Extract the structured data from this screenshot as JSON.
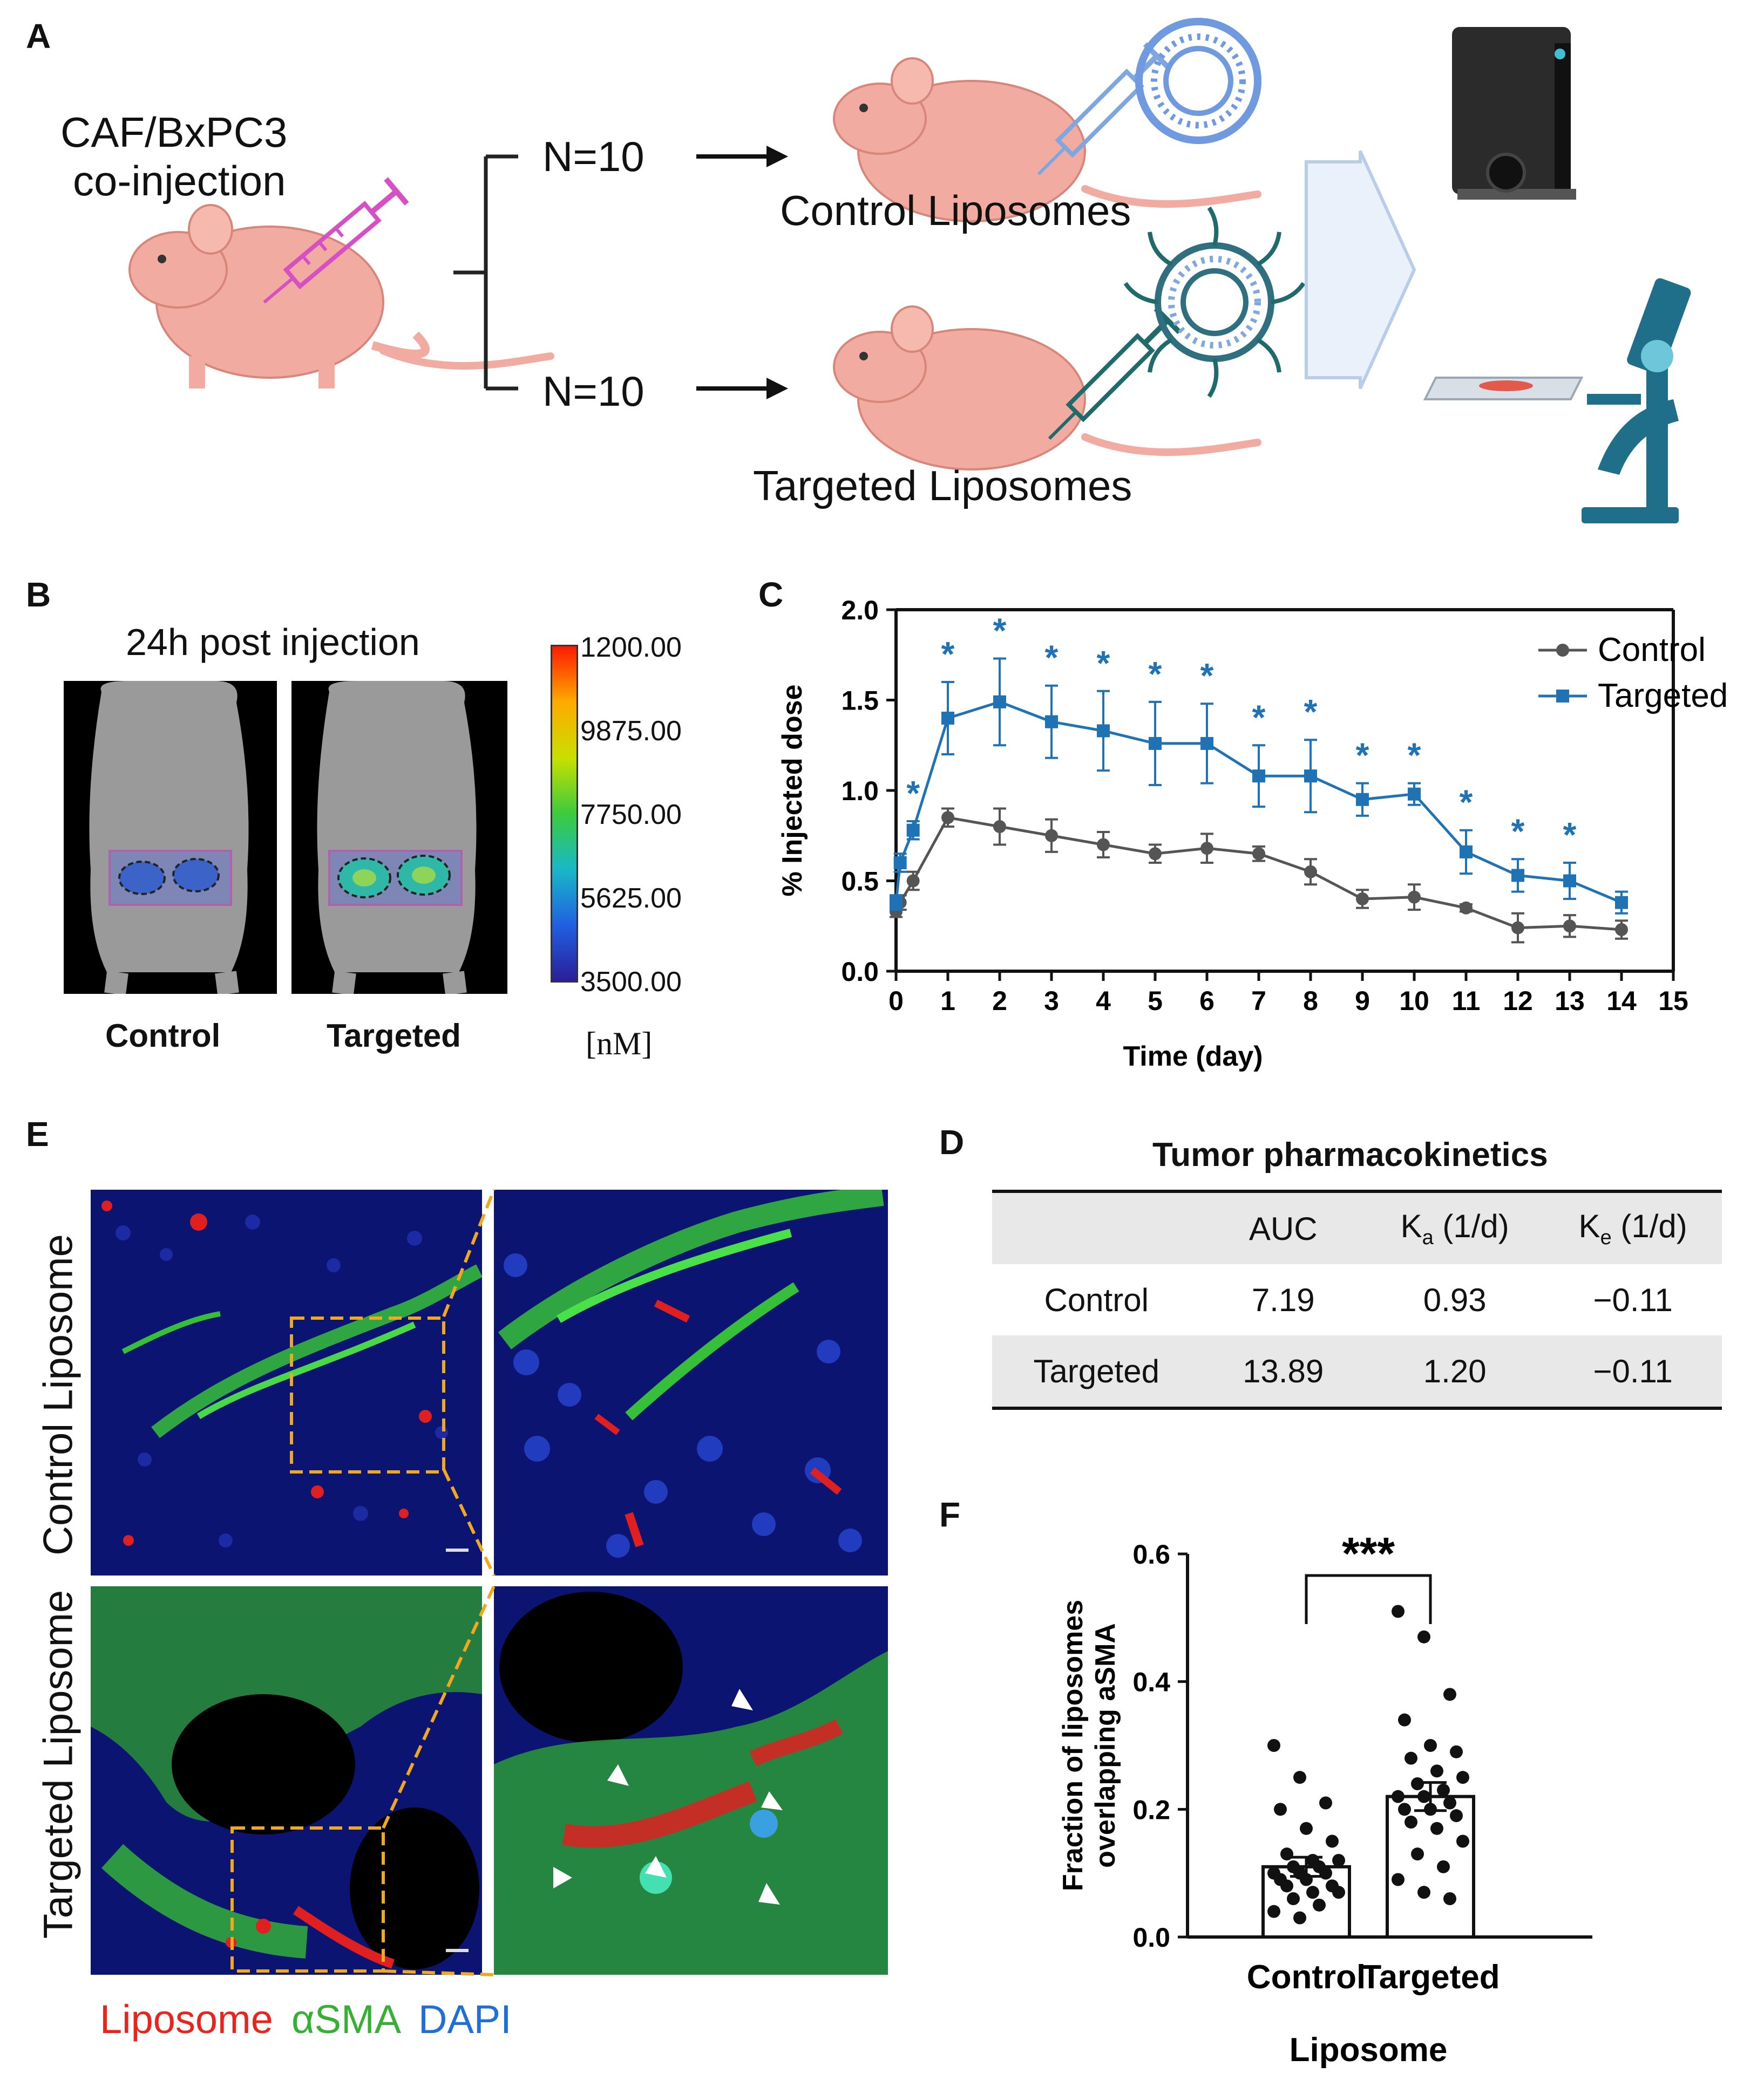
{
  "panels": {
    "A": {
      "letter": "A",
      "coinjection_line1": "CAF/BxPC3",
      "coinjection_line2": "co-injection",
      "group1_n": "N=10",
      "group2_n": "N=10",
      "group1_label": "Control Liposomes",
      "group2_label": "Targeted Liposomes"
    },
    "B": {
      "letter": "B",
      "title": "24h post injection",
      "label_control": "Control",
      "label_targeted": "Targeted",
      "colorbar_ticks": [
        "1200.00",
        "9875.00",
        "7750.00",
        "5625.00",
        "3500.00"
      ],
      "colorbar_unit": "[nM]",
      "colorbar_colors": [
        "#ff1a00",
        "#ffaa00",
        "#c8e000",
        "#3ccb3c",
        "#19b8c8",
        "#2060e0",
        "#2a1e9a"
      ]
    },
    "C": {
      "letter": "C"
    },
    "D": {
      "letter": "D",
      "title": "Tumor pharmacokinetics",
      "headers": [
        "",
        "AUC",
        "Ka (1/d)",
        "Ke (1/d)"
      ],
      "header_main": [
        "",
        "AUC",
        "K",
        "K"
      ],
      "header_sub": [
        "",
        "",
        "a",
        "e"
      ],
      "header_unit": [
        "",
        "",
        " (1/d)",
        " (1/d)"
      ],
      "rows": [
        [
          "Control",
          "7.19",
          "0.93",
          "−0.11"
        ],
        [
          "Targeted",
          "13.89",
          "1.20",
          "−0.11"
        ]
      ]
    },
    "E": {
      "letter": "E",
      "row1_label": "Control Liposome",
      "row2_label": "Targeted Liposome",
      "legend": [
        {
          "text": "Liposome",
          "color": "#e8251c"
        },
        {
          "text": "αSMA",
          "color": "#35b035"
        },
        {
          "text": "DAPI",
          "color": "#1f6fd6"
        }
      ]
    },
    "F": {
      "letter": "F"
    }
  },
  "chart_data": [
    {
      "type": "line",
      "panel": "C",
      "xlabel": "Time (day)",
      "ylabel": "% Injected dose",
      "xlim": [
        0,
        15
      ],
      "ylim": [
        0,
        2.0
      ],
      "xticks": [
        0,
        1,
        2,
        3,
        4,
        5,
        6,
        7,
        8,
        9,
        10,
        11,
        12,
        13,
        14,
        15
      ],
      "yticks": [
        0.0,
        0.5,
        1.0,
        1.5,
        2.0
      ],
      "ytick_labels": [
        "0.0",
        "0.5",
        "1.0",
        "1.5",
        "2.0"
      ],
      "legend_position": "top-right",
      "series": [
        {
          "name": "Control",
          "color": "#555555",
          "marker": "circle",
          "x": [
            0,
            0.08,
            0.33,
            1,
            2,
            3,
            4,
            5,
            6,
            7,
            8,
            9,
            10,
            11,
            12,
            13,
            14
          ],
          "y": [
            0.33,
            0.38,
            0.5,
            0.85,
            0.8,
            0.75,
            0.7,
            0.65,
            0.68,
            0.65,
            0.55,
            0.4,
            0.41,
            0.35,
            0.24,
            0.25,
            0.23
          ],
          "err": [
            0.03,
            0.04,
            0.05,
            0.05,
            0.1,
            0.09,
            0.07,
            0.05,
            0.08,
            0.04,
            0.07,
            0.05,
            0.07,
            0.02,
            0.08,
            0.06,
            0.05
          ]
        },
        {
          "name": "Targeted",
          "color": "#1f73b4",
          "marker": "square",
          "x": [
            0,
            0.08,
            0.33,
            1,
            2,
            3,
            4,
            5,
            6,
            7,
            8,
            9,
            10,
            11,
            12,
            13,
            14
          ],
          "y": [
            0.38,
            0.6,
            0.78,
            1.4,
            1.49,
            1.38,
            1.33,
            1.26,
            1.26,
            1.08,
            1.08,
            0.95,
            0.98,
            0.66,
            0.53,
            0.5,
            0.38
          ],
          "err": [
            0.04,
            0.05,
            0.05,
            0.2,
            0.24,
            0.2,
            0.22,
            0.23,
            0.22,
            0.17,
            0.2,
            0.09,
            0.06,
            0.12,
            0.09,
            0.1,
            0.06
          ]
        }
      ],
      "significance": {
        "symbol": "*",
        "color": "#1f73b4",
        "x": [
          0.33,
          1,
          2,
          3,
          4,
          5,
          6,
          7,
          8,
          9,
          10,
          11,
          12,
          13
        ]
      }
    },
    {
      "type": "bar",
      "panel": "F",
      "categories": [
        "Control",
        "Targeted"
      ],
      "values": [
        0.11,
        0.22
      ],
      "sem": [
        0.015,
        0.022
      ],
      "xlabel": "Liposome",
      "ylabel_line1": "Fraction of liposomes",
      "ylabel_line2": "overlapping aSMA",
      "ylim": [
        0,
        0.6
      ],
      "yticks": [
        0.0,
        0.2,
        0.4,
        0.6
      ],
      "ytick_labels": [
        "0.0",
        "0.2",
        "0.4",
        "0.6"
      ],
      "significance": "***",
      "points": [
        [
          0.3,
          0.25,
          0.21,
          0.2,
          0.17,
          0.15,
          0.13,
          0.12,
          0.12,
          0.11,
          0.11,
          0.1,
          0.1,
          0.1,
          0.09,
          0.09,
          0.08,
          0.08,
          0.07,
          0.07,
          0.06,
          0.05,
          0.04,
          0.03
        ],
        [
          0.51,
          0.47,
          0.38,
          0.34,
          0.3,
          0.29,
          0.28,
          0.26,
          0.25,
          0.24,
          0.23,
          0.22,
          0.22,
          0.21,
          0.2,
          0.2,
          0.19,
          0.18,
          0.17,
          0.15,
          0.13,
          0.11,
          0.09,
          0.07,
          0.06
        ]
      ]
    }
  ]
}
